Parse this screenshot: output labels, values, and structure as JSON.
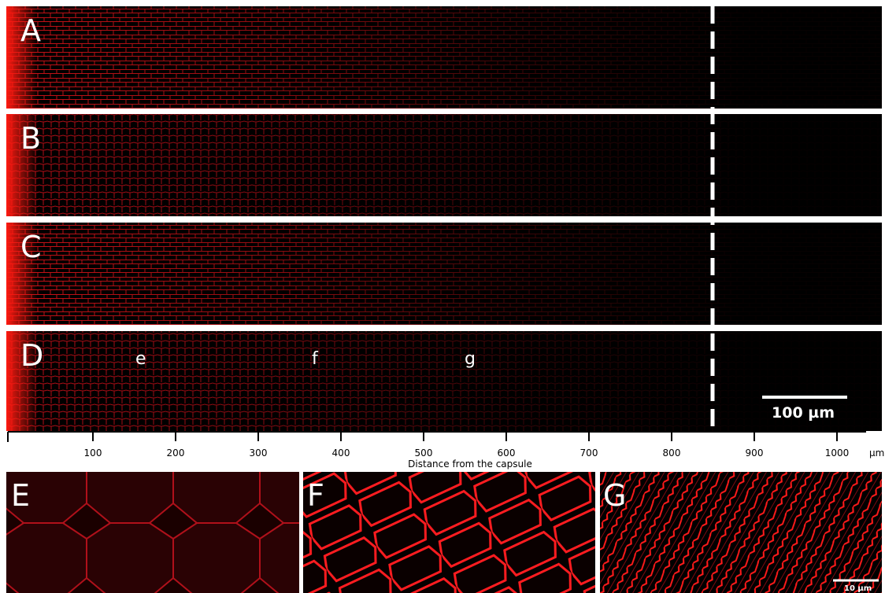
{
  "panels": [
    {
      "label": "A"
    },
    {
      "label": "B"
    },
    {
      "label": "C"
    },
    {
      "label": "D"
    }
  ],
  "region_labels": [
    "e",
    "f",
    "g"
  ],
  "scale_bar_main": "100 µm",
  "axis": {
    "ticks": [
      100,
      200,
      300,
      400,
      500,
      600,
      700,
      800,
      900,
      1000
    ],
    "unit": "µm",
    "title": "Distance from the capsule"
  },
  "insets": [
    {
      "label": "E"
    },
    {
      "label": "F"
    },
    {
      "label": "G",
      "scale_bar": "10 µm"
    }
  ]
}
